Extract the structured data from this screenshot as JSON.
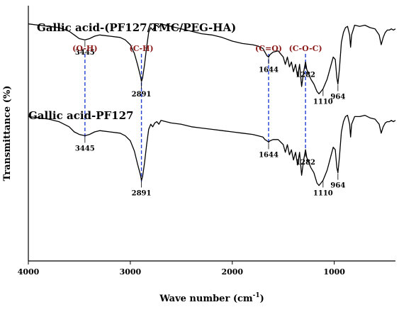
{
  "chart_data": {
    "type": "line",
    "title": "",
    "xlabel": "Wave number (cm",
    "xlabel_sup": "-1",
    "xlabel_close": ")",
    "ylabel": "Transmittance (%)",
    "xlim": [
      4000,
      400
    ],
    "x_reversed": true,
    "y_ticks_shown": false,
    "grid": false,
    "x_ticks": [
      4000,
      3000,
      2000,
      1000
    ],
    "x_tick_labels": [
      "4000",
      "3000",
      "2000",
      "1000"
    ],
    "series": [
      {
        "name": "Gallic acid-(PF127/TMC/PEG-HA)",
        "x": [
          4000,
          3900,
          3800,
          3700,
          3600,
          3550,
          3500,
          3445,
          3400,
          3350,
          3300,
          3200,
          3100,
          3050,
          3000,
          2960,
          2930,
          2900,
          2891,
          2880,
          2860,
          2840,
          2820,
          2800,
          2780,
          2760,
          2740,
          2720,
          2700,
          2650,
          2600,
          2500,
          2400,
          2300,
          2200,
          2100,
          2000,
          1900,
          1800,
          1750,
          1700,
          1680,
          1660,
          1644,
          1630,
          1600,
          1550,
          1500,
          1480,
          1460,
          1440,
          1420,
          1400,
          1380,
          1360,
          1340,
          1320,
          1300,
          1282,
          1270,
          1250,
          1230,
          1200,
          1170,
          1150,
          1130,
          1110,
          1090,
          1070,
          1050,
          1030,
          1010,
          990,
          975,
          964,
          950,
          930,
          910,
          890,
          870,
          850,
          840,
          830,
          800,
          750,
          700,
          650,
          600,
          560,
          540,
          520,
          500,
          480,
          460,
          440,
          420,
          400
        ],
        "y": [
          99,
          98,
          97,
          96,
          93,
          90,
          87,
          86,
          87,
          89,
          90,
          89,
          88,
          86,
          82,
          75,
          66,
          56,
          52,
          55,
          66,
          80,
          92,
          96,
          94,
          97,
          98,
          96,
          99,
          98,
          97,
          95,
          93,
          91,
          90,
          88,
          85,
          83,
          82,
          81,
          79,
          76,
          73,
          72,
          74,
          76,
          77,
          72,
          66,
          72,
          64,
          68,
          60,
          66,
          56,
          66,
          48,
          60,
          68,
          62,
          58,
          54,
          50,
          44,
          42,
          44,
          46,
          50,
          54,
          60,
          66,
          72,
          70,
          55,
          50,
          62,
          84,
          92,
          96,
          97,
          90,
          80,
          90,
          98,
          97,
          98,
          96,
          95,
          90,
          82,
          88,
          92,
          94,
          94,
          95,
          94,
          95
        ]
      },
      {
        "name": "Gallic acid-PF127",
        "x": [
          4000,
          3900,
          3800,
          3700,
          3600,
          3550,
          3500,
          3445,
          3400,
          3350,
          3300,
          3200,
          3100,
          3050,
          3000,
          2960,
          2930,
          2900,
          2891,
          2880,
          2860,
          2840,
          2820,
          2800,
          2780,
          2760,
          2740,
          2720,
          2700,
          2650,
          2600,
          2500,
          2400,
          2300,
          2200,
          2100,
          2000,
          1900,
          1800,
          1750,
          1700,
          1680,
          1660,
          1644,
          1630,
          1600,
          1550,
          1500,
          1480,
          1460,
          1440,
          1420,
          1400,
          1380,
          1360,
          1340,
          1320,
          1300,
          1282,
          1270,
          1250,
          1230,
          1200,
          1170,
          1150,
          1130,
          1110,
          1090,
          1070,
          1050,
          1030,
          1010,
          990,
          975,
          964,
          950,
          930,
          910,
          890,
          870,
          850,
          840,
          830,
          800,
          750,
          700,
          650,
          600,
          560,
          540,
          520,
          500,
          480,
          460,
          440,
          420,
          400
        ],
        "y": [
          92,
          91,
          90,
          88,
          84,
          80,
          78,
          77,
          78,
          80,
          81,
          80,
          79,
          77,
          73,
          65,
          55,
          46,
          42,
          45,
          56,
          70,
          82,
          86,
          84,
          87,
          88,
          86,
          89,
          88,
          87,
          86,
          84,
          83,
          82,
          81,
          80,
          79,
          78,
          77,
          76,
          74,
          73,
          72,
          73,
          74,
          74,
          70,
          64,
          70,
          62,
          66,
          58,
          64,
          54,
          64,
          46,
          58,
          66,
          60,
          56,
          52,
          48,
          40,
          38,
          40,
          42,
          46,
          50,
          56,
          62,
          68,
          66,
          52,
          48,
          60,
          80,
          88,
          92,
          93,
          86,
          76,
          86,
          92,
          92,
          93,
          91,
          90,
          86,
          79,
          84,
          87,
          88,
          88,
          89,
          88,
          89
        ]
      }
    ],
    "peak_labels": [
      {
        "series": 0,
        "x": 3445,
        "text": "3445"
      },
      {
        "series": 0,
        "x": 2891,
        "text": "2891"
      },
      {
        "series": 0,
        "x": 1644,
        "text": "1644"
      },
      {
        "series": 0,
        "x": 1282,
        "text": "1282"
      },
      {
        "series": 0,
        "x": 1110,
        "text": "1110"
      },
      {
        "series": 0,
        "x": 964,
        "text": "964"
      },
      {
        "series": 1,
        "x": 3445,
        "text": "3445"
      },
      {
        "series": 1,
        "x": 2891,
        "text": "2891"
      },
      {
        "series": 1,
        "x": 1644,
        "text": "1644"
      },
      {
        "series": 1,
        "x": 1282,
        "text": "1282"
      },
      {
        "series": 1,
        "x": 1110,
        "text": "1110"
      },
      {
        "series": 1,
        "x": 964,
        "text": "964"
      }
    ],
    "group_labels": [
      {
        "x": 3445,
        "text": "(O-H)"
      },
      {
        "x": 2891,
        "text": "(C-H)"
      },
      {
        "x": 1644,
        "text": "(C=O)"
      },
      {
        "x": 1282,
        "text": "(C-O-C)"
      }
    ],
    "colors": {
      "line": "#000000",
      "guide": "#1f3fd6",
      "group_label": "#8b1a1a"
    }
  }
}
